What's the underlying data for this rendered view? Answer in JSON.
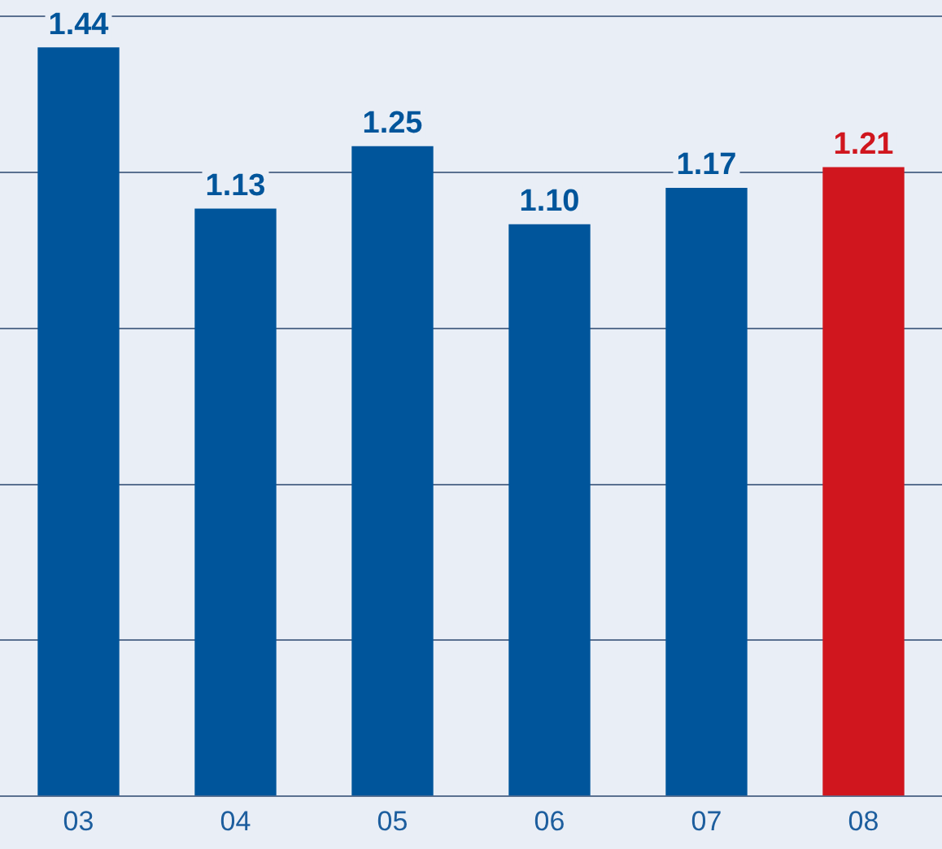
{
  "chart_data": {
    "type": "bar",
    "categories": [
      "03",
      "04",
      "05",
      "06",
      "07",
      "08"
    ],
    "values": [
      1.44,
      1.13,
      1.25,
      1.1,
      1.17,
      1.21
    ],
    "colors": [
      "#00559b",
      "#00559b",
      "#00559b",
      "#00559b",
      "#00559b",
      "#d0161e"
    ],
    "ylim": [
      0,
      1.5
    ],
    "yticks": [
      {
        "value": 0,
        "label": null
      },
      {
        "value": 0.3,
        "label": null
      },
      {
        "value": 0.6,
        "label": null
      },
      {
        "value": 0.9,
        "label": null
      },
      {
        "value": 1.2,
        "label": null
      },
      {
        "value": 1.5,
        "label": null
      }
    ],
    "value_labels": [
      "1.44",
      "1.13",
      "1.25",
      "1.10",
      "1.17",
      "1.21"
    ],
    "tick_labels": "x",
    "grid": "y",
    "legend": false
  }
}
